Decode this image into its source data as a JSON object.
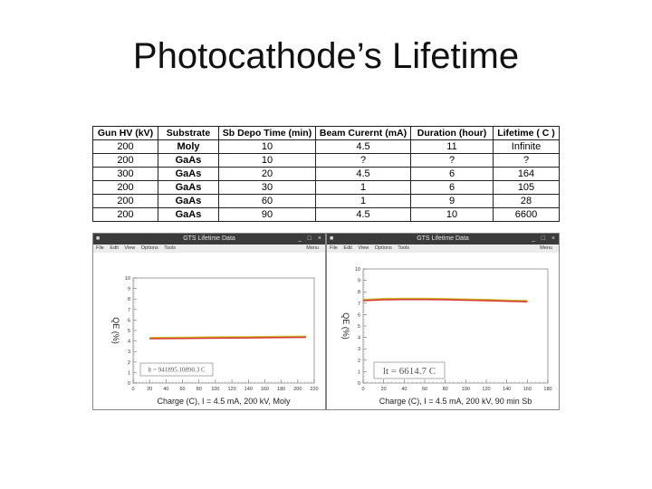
{
  "slide": {
    "title": "Photocathode’s Lifetime"
  },
  "table": {
    "headers": [
      "Gun HV (kV)",
      "Substrate",
      "Sb Depo Time (min)",
      "Beam Curernt (mA)",
      "Duration (hour)",
      "Lifetime ( C )"
    ],
    "rows": [
      [
        "200",
        "Moly",
        "10",
        "4.5",
        "11",
        "Infinite"
      ],
      [
        "200",
        "GaAs",
        "10",
        "?",
        "?",
        "?"
      ],
      [
        "300",
        "GaAs",
        "20",
        "4.5",
        "6",
        "164"
      ],
      [
        "200",
        "GaAs",
        "30",
        "1",
        "6",
        "105"
      ],
      [
        "200",
        "GaAs",
        "60",
        "1",
        "9",
        "28"
      ],
      [
        "200",
        "GaAs",
        "90",
        "4.5",
        "10",
        "6600"
      ]
    ]
  },
  "windows": [
    {
      "title": "GTS Lifetime Data",
      "menu": [
        "File",
        "Edit",
        "View",
        "Options",
        "Tools"
      ],
      "menu_right": "Menu",
      "controls": [
        "_",
        "□",
        "×"
      ]
    },
    {
      "title": "GTS Lifetime Data",
      "menu": [
        "File",
        "Edit",
        "View",
        "Options",
        "Tools"
      ],
      "menu_right": "Menu",
      "controls": [
        "_",
        "□",
        "×"
      ]
    }
  ],
  "chart_data": [
    {
      "type": "line",
      "xlabel": "Charge (C), I = 4.5 mA, 200 kV, Moly",
      "ylabel": "QE (%)",
      "xlim": [
        0,
        220
      ],
      "ylim": [
        0,
        10
      ],
      "xticks": [
        0,
        20,
        40,
        60,
        80,
        100,
        120,
        140,
        160,
        180,
        200,
        220
      ],
      "yticks": [
        0,
        1,
        2,
        3,
        4,
        5,
        6,
        7,
        8,
        9,
        10
      ],
      "annotation": "lt = 941895.10890.3 C",
      "series": [
        {
          "color": "#d42020",
          "x": [
            20,
            60,
            100,
            140,
            180,
            210
          ],
          "y": [
            4.3,
            4.33,
            4.36,
            4.38,
            4.41,
            4.43
          ]
        },
        {
          "color": "#c8c020",
          "x": [
            20,
            60,
            100,
            140,
            180,
            210
          ],
          "y": [
            4.3,
            4.33,
            4.36,
            4.38,
            4.41,
            4.43
          ]
        }
      ]
    },
    {
      "type": "line",
      "xlabel": "Charge (C), I = 4.5 mA, 200 kV, 90 min Sb",
      "ylabel": "QE (%)",
      "xlim": [
        0,
        180
      ],
      "ylim": [
        0,
        10
      ],
      "xticks": [
        0,
        20,
        40,
        60,
        80,
        100,
        120,
        140,
        160,
        180
      ],
      "yticks": [
        0,
        1,
        2,
        3,
        4,
        5,
        6,
        7,
        8,
        9,
        10
      ],
      "annotation": "lt = 6614.7 C",
      "series": [
        {
          "color": "#d42020",
          "x": [
            0,
            20,
            40,
            60,
            80,
            100,
            120,
            140,
            160
          ],
          "y": [
            7.3,
            7.38,
            7.4,
            7.4,
            7.37,
            7.33,
            7.3,
            7.25,
            7.2
          ]
        },
        {
          "color": "#c8c020",
          "x": [
            0,
            20,
            40,
            60,
            80,
            100,
            120,
            140,
            160
          ],
          "y": [
            7.3,
            7.38,
            7.4,
            7.4,
            7.37,
            7.33,
            7.3,
            7.25,
            7.2
          ]
        }
      ]
    }
  ]
}
